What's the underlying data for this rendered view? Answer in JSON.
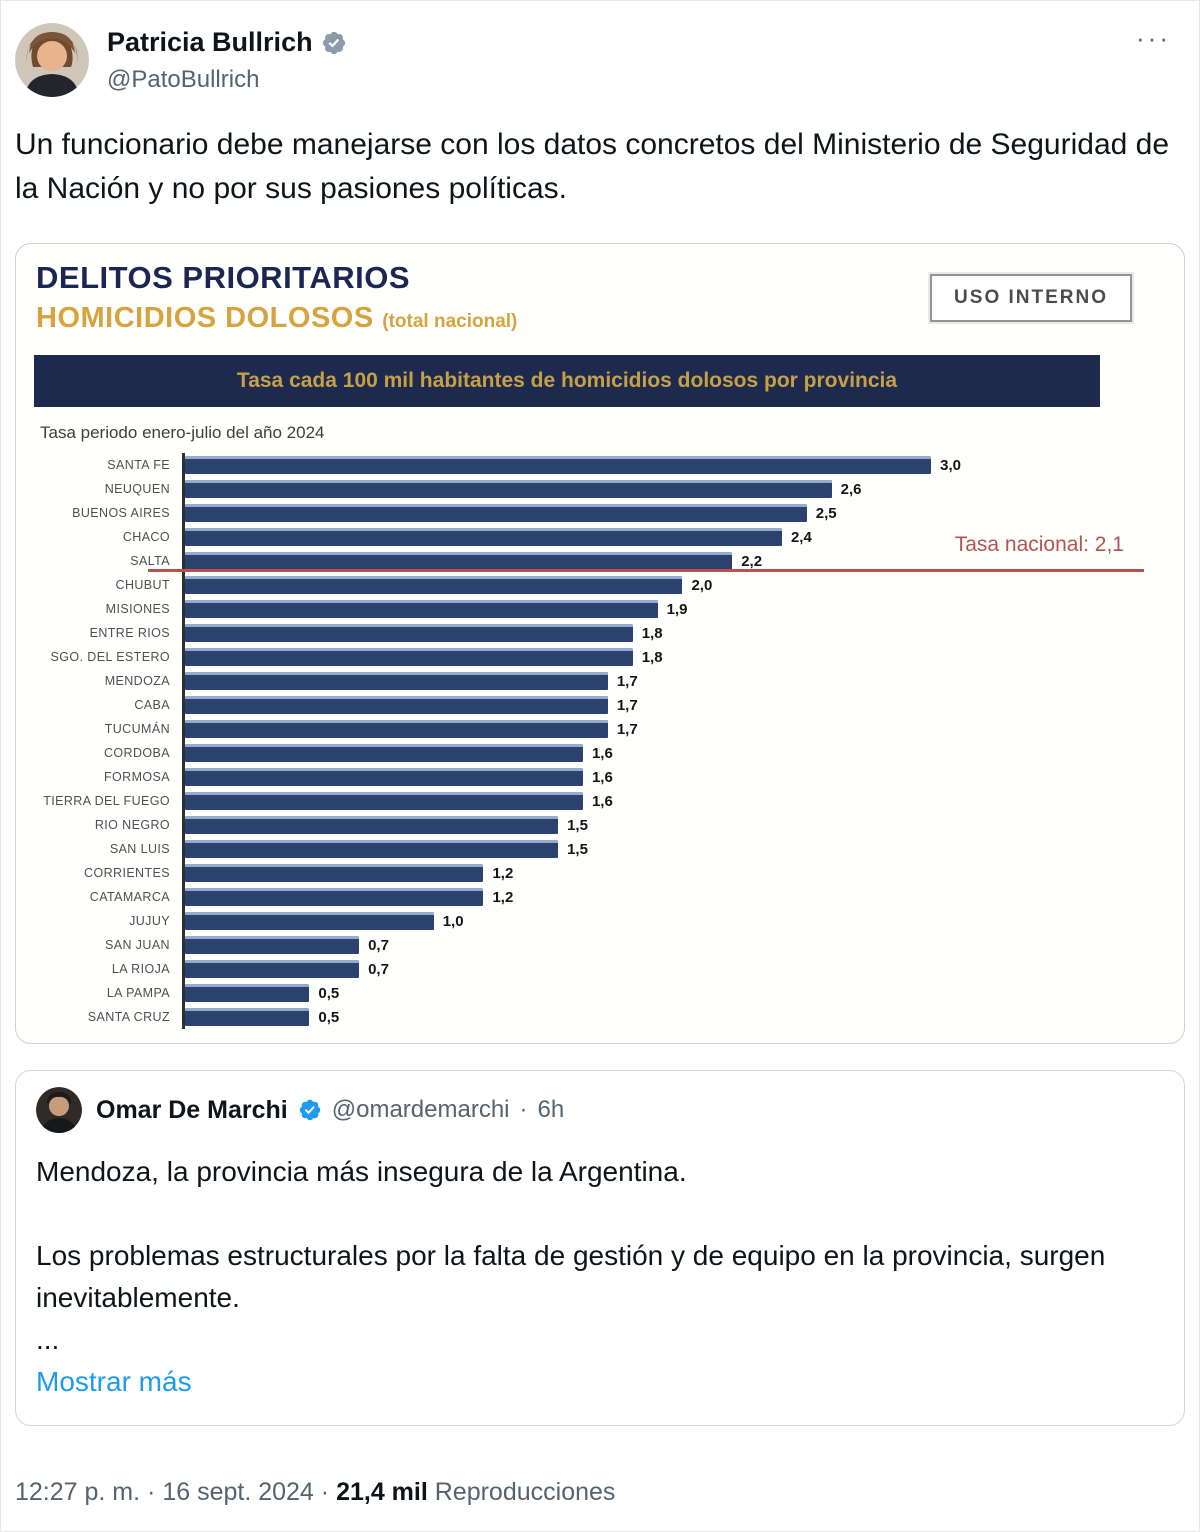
{
  "header": {
    "name": "Patricia Bullrich",
    "handle": "@PatoBullrich",
    "verified_badge_color": "#8c9bab",
    "more_label": "···"
  },
  "tweet": {
    "text": "Un funcionario debe manejarse con los datos concretos del Ministerio de Seguridad de la Nación y no por sus pasiones políticas."
  },
  "chart": {
    "title_line1": "DELITOS PRIORITARIOS",
    "title_line2": "HOMICIDIOS DOLOSOS",
    "title_suffix": "(total nacional)",
    "internal_badge": "USO INTERNO",
    "banner": "Tasa cada 100 mil habitantes de homicidios dolosos por provincia",
    "subtitle": "Tasa periodo enero-julio del año 2024"
  },
  "chart_data": {
    "type": "bar",
    "orientation": "horizontal",
    "title": "Tasa cada 100 mil habitantes de homicidios dolosos por provincia",
    "subtitle": "Tasa periodo enero-julio del año 2024",
    "categories": [
      "SANTA FE",
      "NEUQUEN",
      "BUENOS AIRES",
      "CHACO",
      "SALTA",
      "CHUBUT",
      "MISIONES",
      "ENTRE RIOS",
      "SGO. DEL ESTERO",
      "MENDOZA",
      "CABA",
      "TUCUMÁN",
      "CORDOBA",
      "FORMOSA",
      "TIERRA DEL FUEGO",
      "RIO NEGRO",
      "SAN LUIS",
      "CORRIENTES",
      "CATAMARCA",
      "JUJUY",
      "SAN JUAN",
      "LA RIOJA",
      "LA PAMPA",
      "SANTA CRUZ"
    ],
    "values": [
      3.0,
      2.6,
      2.5,
      2.4,
      2.2,
      2.0,
      1.9,
      1.8,
      1.8,
      1.7,
      1.7,
      1.7,
      1.6,
      1.6,
      1.6,
      1.5,
      1.5,
      1.2,
      1.2,
      1.0,
      0.7,
      0.7,
      0.5,
      0.5
    ],
    "decimal_separator": ",",
    "xlim": [
      0,
      3.0
    ],
    "national_rate": 2.1,
    "national_rate_label": "Tasa nacional: 2,1",
    "grid": false,
    "colors": {
      "bar": "#2b4170",
      "bar_highlight": "#96aace",
      "national_line": "#b5534f",
      "banner_bg": "#1e2a4d",
      "banner_text": "#c5a046",
      "title_navy": "#1b2653",
      "title_gold": "#d7a33f"
    }
  },
  "quote": {
    "name": "Omar De Marchi",
    "handle": "@omardemarchi",
    "time_sep": "·",
    "time": "6h",
    "verified_badge_color": "#1d9bf0",
    "line1": "Mendoza, la provincia más insegura de la Argentina.",
    "line2": "Los problemas estructurales por la falta de gestión y de equipo en la provincia, surgen inevitablemente.",
    "ellipsis": "...",
    "show_more": "Mostrar más"
  },
  "footer": {
    "time": "12:27 p. m.",
    "dot": "·",
    "date": "16 sept. 2024",
    "views_count": "21,4 mil",
    "views_label": "Reproducciones"
  }
}
